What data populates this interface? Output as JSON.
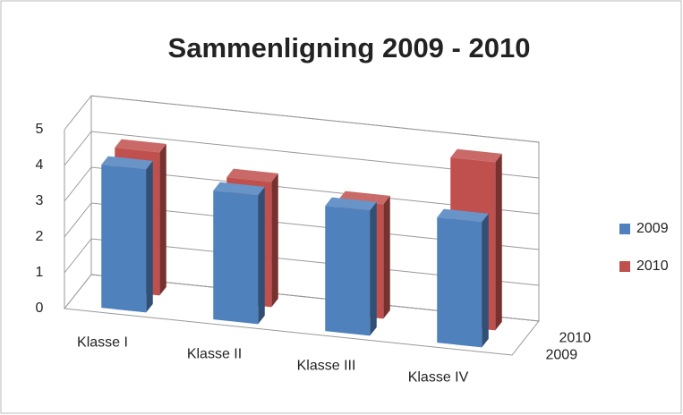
{
  "chart_data": {
    "type": "bar3d",
    "title": "Sammenligning 2009 - 2010",
    "categories": [
      "Klasse I",
      "Klasse II",
      "Klasse III",
      "Klasse IV"
    ],
    "series": [
      {
        "name": "2009",
        "color": "#4f81bd",
        "values": [
          4,
          3.6,
          3.5,
          3.5
        ]
      },
      {
        "name": "2010",
        "color": "#c0504d",
        "values": [
          4,
          3.5,
          3.2,
          4.7
        ]
      }
    ],
    "ylim": [
      0,
      5
    ],
    "yticks": [
      0,
      1,
      2,
      3,
      4,
      5
    ],
    "grid": true,
    "legend": "right"
  }
}
